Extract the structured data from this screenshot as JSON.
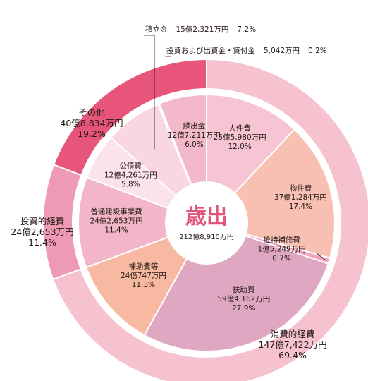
{
  "chart_data": {
    "type": "pie",
    "title": "歳出",
    "total": "212億8,910万円",
    "outer_ring": [
      {
        "name": "消費的経費",
        "amount": "147億7,422万円",
        "percent": "69.4%",
        "value": 69.4,
        "color": "#f6c2cf"
      },
      {
        "name": "投資的経費",
        "amount": "24億2,653万円",
        "percent": "11.4%",
        "value": 11.4,
        "color": "#ee9ab4"
      },
      {
        "name": "その他",
        "amount": "40億8,834万円",
        "percent": "19.2%",
        "value": 19.2,
        "color": "#e8557a"
      }
    ],
    "inner_ring": [
      {
        "name": "人件費",
        "amount": "25億5,980万円",
        "percent": "12.0%",
        "value": 12.0,
        "color": "#f7c4d3"
      },
      {
        "name": "物件費",
        "amount": "37億1,284万円",
        "percent": "17.4%",
        "value": 17.4,
        "color": "#f8c0b2"
      },
      {
        "name": "維持補修費",
        "amount": "1億5,249万円",
        "percent": "0.7%",
        "value": 0.7,
        "color": "#f1a3bb"
      },
      {
        "name": "扶助費",
        "amount": "59億4,162万円",
        "percent": "27.9%",
        "value": 27.9,
        "color": "#e0a7c2"
      },
      {
        "name": "補助費等",
        "amount": "24億747万円",
        "percent": "11.3%",
        "value": 11.3,
        "color": "#f7b9a1"
      },
      {
        "name": "普通建設事業費",
        "amount": "24億2,653万円",
        "percent": "11.4%",
        "value": 11.4,
        "color": "#f3b6c8"
      },
      {
        "name": "公債費",
        "amount": "12億4,261万円",
        "percent": "5.8%",
        "value": 5.8,
        "color": "#fbe3eb"
      },
      {
        "name": "積立金",
        "amount": "15億2,321万円",
        "percent": "7.2%",
        "value": 7.2,
        "color": "#fad6e2"
      },
      {
        "name": "投資および出資金・貸付金",
        "amount": "5,042万円",
        "percent": "0.2%",
        "value": 0.2,
        "color": "#f3c4d3"
      },
      {
        "name": "繰出金",
        "amount": "12億7,211万円",
        "percent": "6.0%",
        "value": 6.0,
        "color": "#f3b9ca"
      }
    ]
  }
}
